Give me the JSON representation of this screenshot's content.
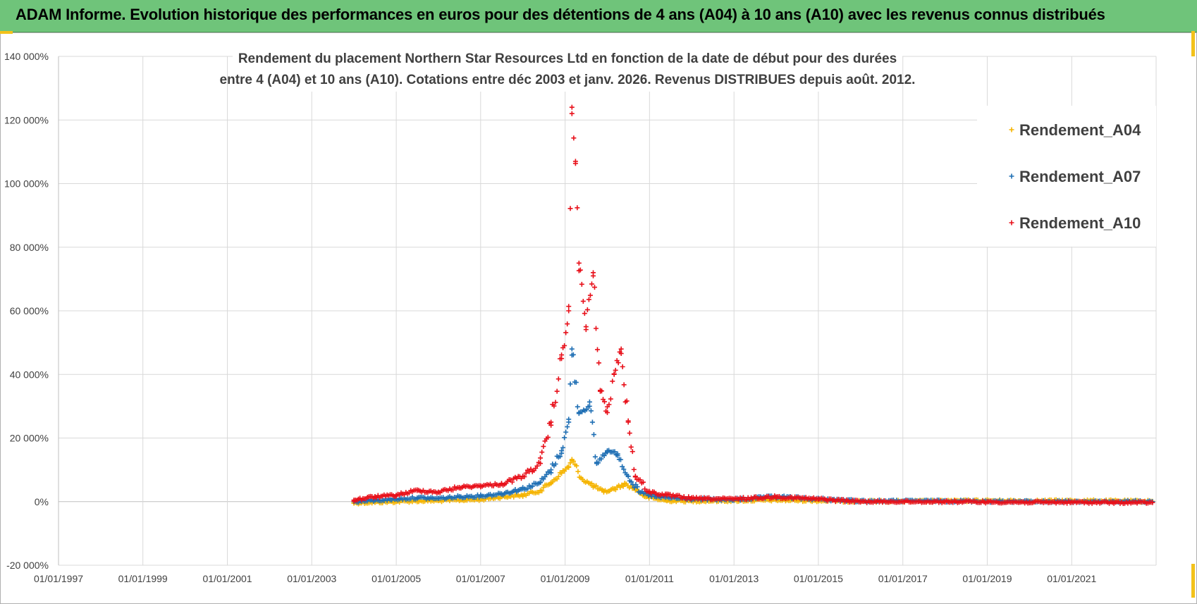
{
  "header": {
    "title": "ADAM Informe. Evolution historique des performances en euros pour des détentions de 4 ans (A04) à 10 ans (A10) avec les revenus connus distribués"
  },
  "colors": {
    "banner": "#6fc47a",
    "accent_corner": "#f3c21b",
    "A04": "#f5b400",
    "A07": "#1f6fb4",
    "A10": "#e8101a",
    "gridline": "#d9d9d9",
    "zero_line": "#bfbfbf"
  },
  "chart_data": {
    "type": "scatter",
    "title_lines": [
      "Rendement du placement Northern Star Resources Ltd en fonction de la date de début pour des durées",
      "entre 4 (A04) et 10 ans (A10).  Cotations entre déc 2003 et janv. 2026.  Revenus DISTRIBUES depuis août. 2012."
    ],
    "xlabel": "",
    "ylabel": "",
    "x_tick_labels": [
      "01/01/1997",
      "01/01/1999",
      "01/01/2001",
      "01/01/2003",
      "01/01/2005",
      "01/01/2007",
      "01/01/2009",
      "01/01/2011",
      "01/01/2013",
      "01/01/2015",
      "01/01/2017",
      "01/01/2019",
      "01/01/2021"
    ],
    "y_tick_labels": [
      "140 000%",
      "120 000%",
      "100 000%",
      "80 000%",
      "60 000%",
      "40 000%",
      "20 000%",
      "0%",
      "-20 000%"
    ],
    "xlim": [
      "1997-01-01",
      "2023-01-01"
    ],
    "ylim": [
      -20000,
      140000
    ],
    "grid": true,
    "legend_position": "top-right",
    "marker": "+",
    "series": [
      {
        "name": "Rendement_A04",
        "color": "#f5b400",
        "points": [
          [
            "2004-01-01",
            -400
          ],
          [
            "2004-07-01",
            -200
          ],
          [
            "2005-01-01",
            0
          ],
          [
            "2005-07-01",
            200
          ],
          [
            "2006-01-01",
            300
          ],
          [
            "2006-07-01",
            500
          ],
          [
            "2007-01-01",
            700
          ],
          [
            "2007-07-01",
            1500
          ],
          [
            "2008-01-01",
            2000
          ],
          [
            "2008-06-01",
            3500
          ],
          [
            "2008-09-01",
            6000
          ],
          [
            "2008-12-01",
            9000
          ],
          [
            "2009-02-01",
            11000
          ],
          [
            "2009-03-01",
            13000
          ],
          [
            "2009-06-01",
            7000
          ],
          [
            "2009-09-01",
            5000
          ],
          [
            "2009-12-01",
            3000
          ],
          [
            "2010-03-01",
            4000
          ],
          [
            "2010-06-01",
            5500
          ],
          [
            "2010-09-01",
            4000
          ],
          [
            "2010-12-01",
            1500
          ],
          [
            "2011-06-01",
            300
          ],
          [
            "2012-01-01",
            200
          ],
          [
            "2013-01-01",
            300
          ],
          [
            "2014-01-01",
            500
          ],
          [
            "2015-01-01",
            300
          ],
          [
            "2016-01-01",
            100
          ],
          [
            "2017-01-01",
            100
          ],
          [
            "2018-01-01",
            200
          ],
          [
            "2019-01-01",
            300
          ],
          [
            "2020-01-01",
            200
          ],
          [
            "2021-01-01",
            300
          ],
          [
            "2022-01-01",
            200
          ],
          [
            "2022-12-01",
            100
          ]
        ]
      },
      {
        "name": "Rendement_A07",
        "color": "#1f6fb4",
        "points": [
          [
            "2004-01-01",
            0
          ],
          [
            "2004-07-01",
            400
          ],
          [
            "2005-01-01",
            800
          ],
          [
            "2005-07-01",
            1200
          ],
          [
            "2006-01-01",
            1000
          ],
          [
            "2006-07-01",
            1500
          ],
          [
            "2007-01-01",
            1800
          ],
          [
            "2007-07-01",
            2500
          ],
          [
            "2008-01-01",
            4000
          ],
          [
            "2008-06-01",
            6000
          ],
          [
            "2008-09-01",
            10000
          ],
          [
            "2008-12-01",
            16000
          ],
          [
            "2009-02-01",
            25000
          ],
          [
            "2009-03-01",
            48000
          ],
          [
            "2009-05-01",
            28000
          ],
          [
            "2009-08-01",
            30000
          ],
          [
            "2009-10-01",
            12000
          ],
          [
            "2010-01-01",
            16000
          ],
          [
            "2010-04-01",
            15000
          ],
          [
            "2010-07-01",
            8000
          ],
          [
            "2010-10-01",
            3000
          ],
          [
            "2011-03-01",
            1500
          ],
          [
            "2012-01-01",
            800
          ],
          [
            "2013-01-01",
            600
          ],
          [
            "2014-01-01",
            1500
          ],
          [
            "2015-01-01",
            800
          ],
          [
            "2016-01-01",
            200
          ],
          [
            "2017-01-01",
            200
          ],
          [
            "2018-01-01",
            200
          ],
          [
            "2019-01-01",
            100
          ],
          [
            "2020-01-01",
            0
          ],
          [
            "2021-01-01",
            0
          ],
          [
            "2022-01-01",
            0
          ],
          [
            "2022-12-01",
            0
          ]
        ]
      },
      {
        "name": "Rendement_A10",
        "color": "#e8101a",
        "points": [
          [
            "2004-01-01",
            500
          ],
          [
            "2004-07-01",
            1500
          ],
          [
            "2005-01-01",
            2000
          ],
          [
            "2005-07-01",
            3500
          ],
          [
            "2006-01-01",
            3000
          ],
          [
            "2006-07-01",
            4500
          ],
          [
            "2007-01-01",
            5000
          ],
          [
            "2007-07-01",
            5500
          ],
          [
            "2008-01-01",
            8000
          ],
          [
            "2008-06-01",
            12000
          ],
          [
            "2008-09-01",
            25000
          ],
          [
            "2008-12-01",
            45000
          ],
          [
            "2009-02-01",
            60000
          ],
          [
            "2009-03-01",
            122000
          ],
          [
            "2009-04-01",
            107000
          ],
          [
            "2009-05-01",
            75000
          ],
          [
            "2009-07-01",
            55000
          ],
          [
            "2009-09-01",
            72000
          ],
          [
            "2009-11-01",
            35000
          ],
          [
            "2010-01-01",
            28000
          ],
          [
            "2010-03-01",
            40000
          ],
          [
            "2010-05-01",
            48000
          ],
          [
            "2010-07-01",
            25000
          ],
          [
            "2010-09-01",
            8000
          ],
          [
            "2011-01-01",
            3000
          ],
          [
            "2011-06-01",
            2000
          ],
          [
            "2012-01-01",
            1000
          ],
          [
            "2013-01-01",
            800
          ],
          [
            "2014-01-01",
            1500
          ],
          [
            "2015-01-01",
            800
          ],
          [
            "2016-01-01",
            0
          ],
          [
            "2017-01-01",
            0
          ],
          [
            "2018-01-01",
            0
          ],
          [
            "2019-01-01",
            -100
          ],
          [
            "2020-01-01",
            -200
          ],
          [
            "2021-01-01",
            -200
          ],
          [
            "2022-01-01",
            -300
          ],
          [
            "2022-12-01",
            -300
          ]
        ]
      }
    ]
  }
}
